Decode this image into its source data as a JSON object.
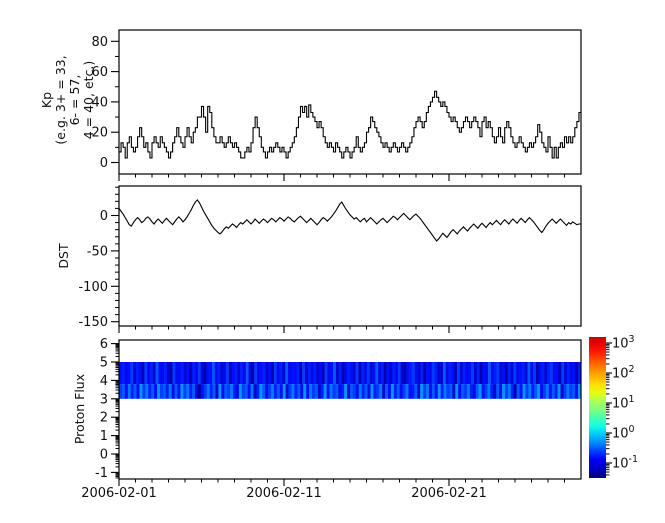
{
  "figure": {
    "background": "#ffffff",
    "line_color": "#000000",
    "text_color": "#111111"
  },
  "xaxis": {
    "start_date": "2006-02-01",
    "end_date": "2006-03-01",
    "span_days": 28,
    "minor_interval_days": 1,
    "major_ticks": [
      {
        "day": 0,
        "label": "2006-02-01"
      },
      {
        "day": 10,
        "label": "2006-02-11"
      },
      {
        "day": 20,
        "label": "2006-02-21"
      }
    ]
  },
  "panels": {
    "kp": {
      "ylabel": "Kp\n(e.g. 3+ = 33,\n6- = 57,\n4 = 40, etc.)",
      "yticks": [
        0,
        20,
        40,
        60,
        80
      ],
      "ylim": [
        -7.6,
        87.5
      ],
      "minor_step": 10
    },
    "dst": {
      "ylabel": "DST",
      "yticks": [
        0,
        -50,
        -100,
        -150
      ],
      "ylim": [
        -156,
        42
      ],
      "minor_step": 10
    },
    "proton": {
      "ylabel": "Proton Flux",
      "yticks": [
        6,
        5,
        4,
        3,
        2,
        1,
        0,
        -1
      ],
      "ylim": [
        -1.36,
        6.2
      ],
      "minor": "log"
    }
  },
  "colorbar": {
    "scale": "log",
    "colormap": "jet",
    "range_exponents": [
      -1.5,
      3.2
    ],
    "ticks": [
      {
        "base": "10",
        "exp": "3",
        "value": 1000
      },
      {
        "base": "10",
        "exp": "2",
        "value": 100
      },
      {
        "base": "10",
        "exp": "1",
        "value": 10
      },
      {
        "base": "10",
        "exp": "0",
        "value": 1
      },
      {
        "base": "10",
        "exp": "-1",
        "value": 0.1
      }
    ]
  },
  "chart_data": [
    {
      "id": "kp",
      "type": "line",
      "step": true,
      "title": "",
      "xlabel": "",
      "ylabel": "Kp (e.g. 3+ = 33, 6- = 57, 4 = 40, etc.)",
      "x_start": "2006-02-01",
      "samples_per_day": 8,
      "ylim": [
        -7.6,
        87.5
      ],
      "yticks": [
        0,
        20,
        40,
        60,
        80
      ],
      "grid": false,
      "values": [
        7,
        13,
        10,
        3,
        13,
        17,
        10,
        7,
        10,
        17,
        23,
        17,
        10,
        13,
        7,
        3,
        13,
        17,
        13,
        10,
        17,
        13,
        10,
        7,
        3,
        7,
        13,
        17,
        23,
        17,
        13,
        10,
        17,
        23,
        17,
        13,
        20,
        23,
        30,
        30,
        37,
        30,
        20,
        37,
        33,
        23,
        17,
        13,
        13,
        17,
        13,
        10,
        13,
        17,
        13,
        10,
        13,
        10,
        7,
        3,
        3,
        7,
        10,
        7,
        13,
        23,
        30,
        23,
        17,
        10,
        7,
        3,
        7,
        10,
        7,
        10,
        13,
        10,
        7,
        10,
        7,
        3,
        7,
        10,
        13,
        17,
        23,
        30,
        37,
        33,
        37,
        30,
        38,
        33,
        30,
        27,
        23,
        27,
        23,
        17,
        13,
        10,
        13,
        10,
        7,
        13,
        10,
        7,
        3,
        7,
        10,
        7,
        3,
        7,
        10,
        17,
        10,
        7,
        10,
        13,
        20,
        23,
        30,
        27,
        23,
        20,
        17,
        13,
        10,
        13,
        10,
        7,
        10,
        13,
        10,
        7,
        10,
        13,
        10,
        7,
        10,
        13,
        17,
        23,
        27,
        30,
        27,
        23,
        27,
        33,
        37,
        40,
        43,
        47,
        43,
        40,
        37,
        40,
        37,
        33,
        30,
        27,
        30,
        27,
        23,
        20,
        23,
        27,
        30,
        27,
        23,
        27,
        30,
        27,
        23,
        17,
        27,
        30,
        23,
        27,
        23,
        17,
        13,
        17,
        23,
        17,
        13,
        23,
        27,
        23,
        17,
        13,
        10,
        13,
        17,
        13,
        10,
        7,
        10,
        13,
        10,
        13,
        17,
        25,
        20,
        13,
        10,
        7,
        17,
        10,
        3,
        10,
        3,
        10,
        13,
        10,
        17,
        13,
        17,
        13,
        17,
        23,
        27,
        33
      ]
    },
    {
      "id": "dst",
      "type": "line",
      "step": false,
      "title": "",
      "xlabel": "",
      "ylabel": "DST",
      "x_start": "2006-02-01",
      "samples_per_day": 8,
      "ylim": [
        -156,
        42
      ],
      "yticks": [
        0,
        -50,
        -100,
        -150
      ],
      "grid": false,
      "values": [
        10,
        6,
        2,
        -3,
        -8,
        -13,
        -15,
        -10,
        -6,
        -3,
        -6,
        -10,
        -8,
        -4,
        -2,
        -5,
        -9,
        -12,
        -8,
        -5,
        -8,
        -11,
        -7,
        -4,
        -7,
        -10,
        -13,
        -9,
        -5,
        -2,
        -5,
        -9,
        -6,
        -2,
        3,
        8,
        14,
        19,
        22,
        18,
        12,
        6,
        1,
        -4,
        -9,
        -14,
        -18,
        -21,
        -24,
        -26,
        -23,
        -19,
        -16,
        -18,
        -15,
        -12,
        -14,
        -17,
        -13,
        -10,
        -12,
        -9,
        -6,
        -9,
        -12,
        -9,
        -5,
        -8,
        -11,
        -8,
        -5,
        -7,
        -10,
        -7,
        -4,
        -6,
        -9,
        -6,
        -3,
        -5,
        -8,
        -5,
        -2,
        -4,
        -7,
        -9,
        -6,
        -3,
        -1,
        -4,
        -7,
        -10,
        -7,
        -4,
        -7,
        -10,
        -13,
        -10,
        -6,
        -3,
        -5,
        -8,
        -5,
        -2,
        2,
        6,
        11,
        16,
        19,
        14,
        9,
        5,
        1,
        -2,
        -5,
        -3,
        -6,
        -9,
        -6,
        -4,
        -9,
        -6,
        -3,
        -6,
        -9,
        -12,
        -9,
        -6,
        -4,
        -7,
        -10,
        -7,
        -4,
        -1,
        -3,
        -6,
        -3,
        0,
        3,
        0,
        -3,
        -6,
        -3,
        0,
        2,
        -1,
        -4,
        -8,
        -12,
        -16,
        -20,
        -24,
        -28,
        -32,
        -36,
        -33,
        -29,
        -25,
        -28,
        -31,
        -27,
        -23,
        -20,
        -23,
        -26,
        -22,
        -19,
        -16,
        -19,
        -22,
        -18,
        -15,
        -12,
        -15,
        -18,
        -14,
        -11,
        -14,
        -17,
        -13,
        -10,
        -13,
        -10,
        -7,
        -10,
        -13,
        -9,
        -6,
        -9,
        -12,
        -8,
        -5,
        -8,
        -11,
        -7,
        -4,
        -7,
        -10,
        -6,
        -3,
        -6,
        -9,
        -13,
        -17,
        -21,
        -24,
        -20,
        -15,
        -11,
        -8,
        -5,
        -8,
        -11,
        -8,
        -5,
        -8,
        -11,
        -14,
        -10,
        -12,
        -9,
        -11,
        -13,
        -12
      ]
    },
    {
      "id": "proton_flux",
      "type": "heatmap",
      "title": "",
      "xlabel": "",
      "ylabel": "Proton Flux",
      "x_start": "2006-02-01",
      "x_end": "2006-03-01",
      "ylim": [
        -1.36,
        6.2
      ],
      "yticks": [
        6,
        5,
        4,
        3,
        2,
        1,
        0,
        -1
      ],
      "band_y": [
        3,
        5
      ],
      "value_scale": "log10 flux, colorbar 1e-1 .. 1e3, band values ~1e-1.4 .. 1e0.5",
      "palette": {
        "low": "#000096",
        "mid": "#000fff",
        "high": "#0096ff"
      },
      "rows": [
        {
          "y": [
            3.8,
            5
          ],
          "digits": "45346254163527435216345241536214473523614525372163452416352734451625352416347251354261536247351425362145632514365227354162534625143735624152634527361452563416253415"
        },
        {
          "y": [
            3.0,
            3.8
          ],
          "digits": "67485739685749675837496857304685729476853967482597368574926857394867259486735927648573956827495736845729683749586729476853794685273968517496857936847592686749"
        }
      ]
    }
  ]
}
